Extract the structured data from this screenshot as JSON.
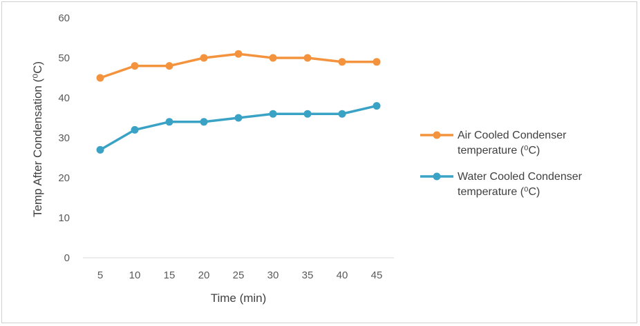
{
  "chart_data": {
    "type": "line",
    "title": "",
    "xlabel": "Time (min)",
    "ylabel": "Temp After Condensation (⁰C)",
    "x": [
      5,
      10,
      15,
      20,
      25,
      30,
      35,
      40,
      45
    ],
    "ylim": [
      0,
      60
    ],
    "yticks": [
      0,
      10,
      20,
      30,
      40,
      50,
      60
    ],
    "grid": false,
    "legend": "right",
    "series": [
      {
        "name_line1": "Air Cooled Condenser",
        "name_line2": "temperature (⁰C)",
        "color": "#f4933d",
        "values": [
          45,
          48,
          48,
          50,
          51,
          50,
          50,
          49,
          49
        ]
      },
      {
        "name_line1": "Water Cooled Condenser",
        "name_line2": "temperature (⁰C)",
        "color": "#3aa3c5",
        "values": [
          27,
          32,
          34,
          34,
          35,
          36,
          36,
          36,
          38
        ]
      }
    ]
  }
}
